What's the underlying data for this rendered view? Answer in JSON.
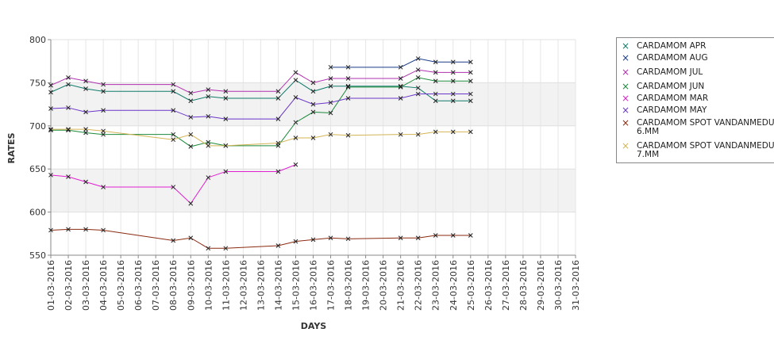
{
  "chart_data": {
    "type": "line",
    "title": "",
    "xlabel": "DAYS",
    "ylabel": "RATES",
    "ylim": [
      550,
      800
    ],
    "yticks": [
      550,
      600,
      650,
      700,
      750,
      800
    ],
    "grid": true,
    "legend_position": "right",
    "categories": [
      "01-03-2016",
      "02-03-2016",
      "03-03-2016",
      "04-03-2016",
      "05-03-2016",
      "06-03-2016",
      "07-03-2016",
      "08-03-2016",
      "09-03-2016",
      "10-03-2016",
      "11-03-2016",
      "12-03-2016",
      "13-03-2016",
      "14-03-2016",
      "15-03-2016",
      "16-03-2016",
      "17-03-2016",
      "18-03-2016",
      "19-03-2016",
      "20-03-2016",
      "21-03-2016",
      "22-03-2016",
      "23-03-2016",
      "24-03-2016",
      "25-03-2016",
      "26-03-2016",
      "27-03-2016",
      "28-03-2016",
      "29-03-2016",
      "30-03-2016",
      "31-03-2016"
    ],
    "series": [
      {
        "name": "CARDAMOM APR",
        "color": "#0f7a6a",
        "points": [
          [
            0,
            739
          ],
          [
            1,
            748
          ],
          [
            2,
            743
          ],
          [
            3,
            740
          ],
          [
            7,
            740
          ],
          [
            8,
            729
          ],
          [
            9,
            734
          ],
          [
            10,
            732
          ],
          [
            13,
            732
          ],
          [
            14,
            753
          ],
          [
            15,
            740
          ],
          [
            16,
            746
          ],
          [
            17,
            746
          ],
          [
            20,
            746
          ],
          [
            21,
            744
          ],
          [
            22,
            729
          ],
          [
            23,
            729
          ],
          [
            24,
            729
          ]
        ]
      },
      {
        "name": "CARDAMOM AUG",
        "color": "#1a3c8c",
        "points": [
          [
            16,
            768
          ],
          [
            17,
            768
          ],
          [
            20,
            768
          ],
          [
            21,
            778
          ],
          [
            22,
            774
          ],
          [
            23,
            774
          ],
          [
            24,
            774
          ]
        ]
      },
      {
        "name": "CARDAMOM JUL",
        "color": "#b030b0",
        "points": [
          [
            0,
            747
          ],
          [
            1,
            756
          ],
          [
            2,
            752
          ],
          [
            3,
            748
          ],
          [
            7,
            748
          ],
          [
            8,
            738
          ],
          [
            9,
            742
          ],
          [
            10,
            740
          ],
          [
            13,
            740
          ],
          [
            14,
            762
          ],
          [
            15,
            750
          ],
          [
            16,
            755
          ],
          [
            17,
            755
          ],
          [
            20,
            755
          ],
          [
            21,
            765
          ],
          [
            22,
            762
          ],
          [
            23,
            762
          ],
          [
            24,
            762
          ]
        ]
      },
      {
        "name": "CARDAMOM JUN",
        "color": "#1a8a3a",
        "points": [
          [
            0,
            695
          ],
          [
            1,
            695
          ],
          [
            2,
            692
          ],
          [
            3,
            690
          ],
          [
            7,
            690
          ],
          [
            8,
            676
          ],
          [
            9,
            681
          ],
          [
            10,
            677
          ],
          [
            13,
            677
          ],
          [
            14,
            704
          ],
          [
            15,
            716
          ],
          [
            16,
            715
          ],
          [
            17,
            745
          ],
          [
            20,
            745
          ],
          [
            21,
            756
          ],
          [
            22,
            752
          ],
          [
            23,
            752
          ],
          [
            24,
            752
          ]
        ]
      },
      {
        "name": "CARDAMOM MAR",
        "color": "#e020d0",
        "points": [
          [
            0,
            643
          ],
          [
            1,
            641
          ],
          [
            2,
            635
          ],
          [
            3,
            629
          ],
          [
            7,
            629
          ],
          [
            8,
            610
          ],
          [
            9,
            640
          ],
          [
            10,
            647
          ],
          [
            13,
            647
          ],
          [
            14,
            655
          ]
        ]
      },
      {
        "name": "CARDAMOM MAY",
        "color": "#6a35c8",
        "points": [
          [
            0,
            720
          ],
          [
            1,
            721
          ],
          [
            2,
            716
          ],
          [
            3,
            718
          ],
          [
            7,
            718
          ],
          [
            8,
            710
          ],
          [
            9,
            711
          ],
          [
            10,
            708
          ],
          [
            13,
            708
          ],
          [
            14,
            733
          ],
          [
            15,
            725
          ],
          [
            16,
            727
          ],
          [
            17,
            732
          ],
          [
            20,
            732
          ],
          [
            21,
            737
          ],
          [
            22,
            737
          ],
          [
            23,
            737
          ],
          [
            24,
            737
          ]
        ]
      },
      {
        "name": "CARDAMOM SPOT VANDANMEDU\n6.MM",
        "color": "#8a2a10",
        "points": [
          [
            0,
            579
          ],
          [
            1,
            580
          ],
          [
            2,
            580
          ],
          [
            3,
            579
          ],
          [
            7,
            567
          ],
          [
            8,
            570
          ],
          [
            9,
            558
          ],
          [
            10,
            558
          ],
          [
            13,
            561
          ],
          [
            14,
            566
          ],
          [
            15,
            568
          ],
          [
            16,
            570
          ],
          [
            17,
            569
          ],
          [
            20,
            570
          ],
          [
            21,
            570
          ],
          [
            22,
            573
          ],
          [
            23,
            573
          ],
          [
            24,
            573
          ]
        ]
      },
      {
        "name": "CARDAMOM SPOT VANDANMEDU\n7.MM",
        "color": "#d4b455",
        "points": [
          [
            0,
            696
          ],
          [
            1,
            696
          ],
          [
            2,
            696
          ],
          [
            3,
            694
          ],
          [
            7,
            684
          ],
          [
            8,
            690
          ],
          [
            9,
            677
          ],
          [
            10,
            677
          ],
          [
            13,
            680
          ],
          [
            14,
            686
          ],
          [
            15,
            686
          ],
          [
            16,
            690
          ],
          [
            17,
            689
          ],
          [
            20,
            690
          ],
          [
            21,
            690
          ],
          [
            22,
            693
          ],
          [
            23,
            693
          ],
          [
            24,
            693
          ]
        ]
      }
    ]
  }
}
